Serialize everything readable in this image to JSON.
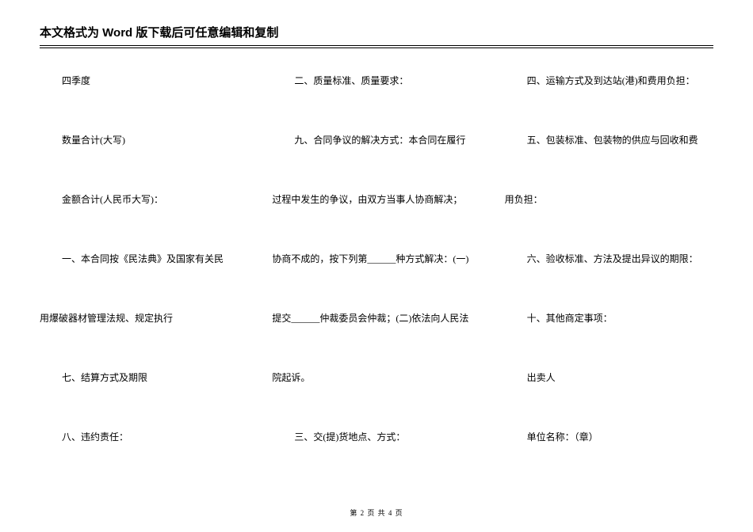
{
  "header": {
    "title": "本文格式为 Word 版下载后可任意编辑和复制"
  },
  "columns": {
    "col1": {
      "r0": "四季度",
      "r1": "数量合计(大写)",
      "r2": "金额合计(人民币大写)：",
      "r3": "一、本合同按《民法典》及国家有关民",
      "r4": "用爆破器材管理法规、规定执行",
      "r5": "七、结算方式及期限",
      "r6": "八、违约责任："
    },
    "col2": {
      "r0": "二、质量标准、质量要求：",
      "r1": "九、合同争议的解决方式：本合同在履行",
      "r2": "过程中发生的争议，由双方当事人协商解决；",
      "r3": "协商不成的，按下列第______种方式解决：(一)",
      "r4": "提交______仲裁委员会仲裁；(二)依法向人民法",
      "r5": "院起诉。",
      "r6": "三、交(提)货地点、方式："
    },
    "col3": {
      "r0": "四、运输方式及到达站(港)和费用负担：",
      "r1": "五、包装标准、包装物的供应与回收和费",
      "r2": "用负担：",
      "r3": "六、验收标准、方法及提出异议的期限：",
      "r4": "十、其他商定事项：",
      "r5": "出卖人",
      "r6": "单位名称：（章）"
    }
  },
  "footer": {
    "text": "第 2 页 共 4 页"
  }
}
